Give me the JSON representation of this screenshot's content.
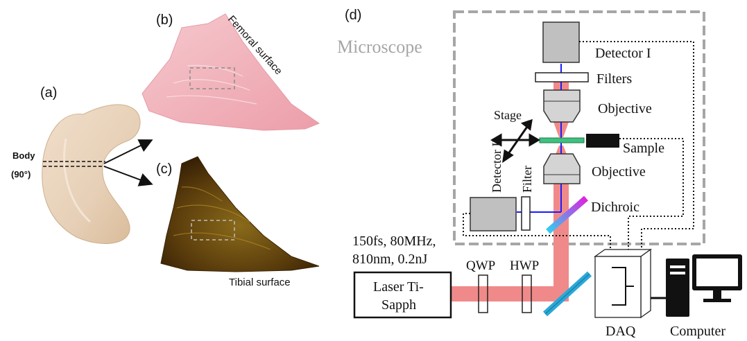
{
  "panels": {
    "a": {
      "label": "(a)",
      "body_label_line1": "Body",
      "body_label_line2": "(90°)"
    },
    "b": {
      "label": "(b)",
      "surface_label": "Femoral surface"
    },
    "c": {
      "label": "(c)",
      "surface_label": "Tibial surface"
    },
    "d": {
      "label": "(d)",
      "microscope_label": "Microscope",
      "detector1": "Detector I",
      "detector2": "Detector II",
      "filters": "Filters",
      "filter": "Filter",
      "objective_top": "Objective",
      "objective_bottom": "Objective",
      "stage": "Stage",
      "sample": "Sample",
      "dichroic": "Dichroic",
      "laser_specs_line1": "150fs, 80MHz,",
      "laser_specs_line2": "810nm, 0.2nJ",
      "laser_line1": "Laser Ti-",
      "laser_line2": "Sapph",
      "qwp": "QWP",
      "hwp": "HWP",
      "daq": "DAQ",
      "computer": "Computer"
    }
  },
  "colors": {
    "beam": "#f08a8a",
    "blue_beam": "#1a1aff",
    "dashed_box": "#a6a6a6",
    "detector_fill": "#c0c0c0",
    "sample_slide": "#40c080",
    "mirror": "#2aa8d8",
    "femoral_tissue": "#f2b8c0",
    "tibial_tissue": "#5a3a10",
    "meniscus": "#e8d4bc"
  }
}
